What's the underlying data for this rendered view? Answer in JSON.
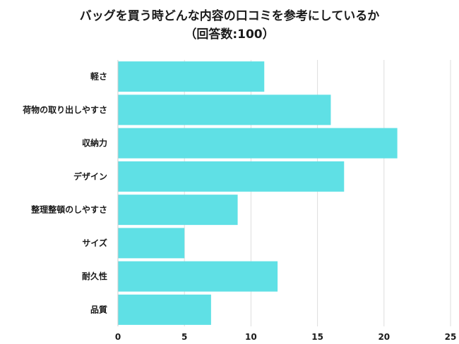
{
  "chart_data": {
    "type": "bar",
    "orientation": "horizontal",
    "title_line1": "バッグを買う時どんな内容の口コミを参考にしているか",
    "title_line2": "（回答数:100）",
    "categories": [
      "軽さ",
      "荷物の取り出しやすさ",
      "収納力",
      "デザイン",
      "整理整頓のしやすさ",
      "サイズ",
      "耐久性",
      "品質"
    ],
    "values": [
      11,
      16,
      21,
      17,
      9,
      5,
      12,
      7
    ],
    "xlim": [
      0,
      25
    ],
    "xticks": [
      "0",
      "5",
      "10",
      "15",
      "20",
      "25"
    ],
    "grid": true,
    "bar_color": "#5fe0e5"
  }
}
